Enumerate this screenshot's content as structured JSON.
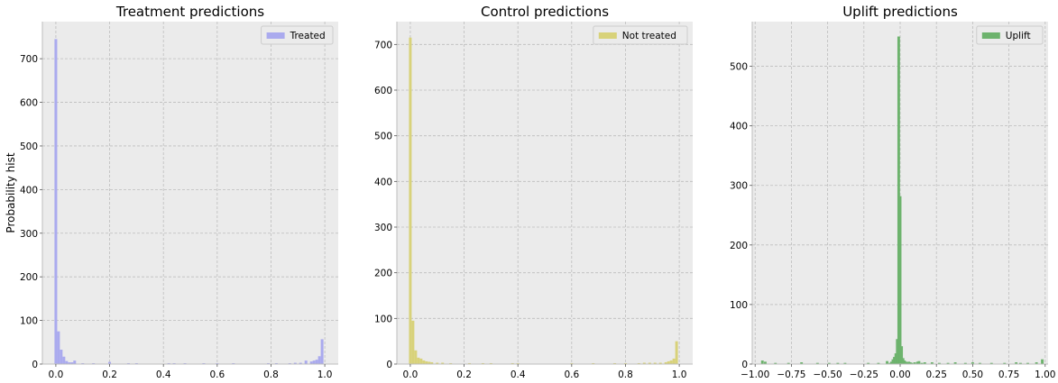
{
  "chart_data": [
    {
      "type": "bar",
      "histogram": true,
      "title": "Treatment predictions",
      "ylabel": "Probability hist",
      "xlim": [
        -0.05,
        1.05
      ],
      "ylim": [
        0,
        785
      ],
      "xticks": [
        0.0,
        0.2,
        0.4,
        0.6,
        0.8,
        1.0
      ],
      "xtick_labels": [
        "0.0",
        "0.2",
        "0.4",
        "0.6",
        "0.8",
        "1.0"
      ],
      "yticks": [
        0,
        100,
        200,
        300,
        400,
        500,
        600,
        700
      ],
      "ytick_labels": [
        "0",
        "100",
        "200",
        "300",
        "400",
        "500",
        "600",
        "700"
      ],
      "grid": true,
      "legend": "upper right",
      "series": [
        {
          "name": "Treated",
          "color": "#aaaaee",
          "bin_width": 0.01,
          "x": [
            0.0,
            0.01,
            0.02,
            0.03,
            0.04,
            0.05,
            0.06,
            0.07,
            0.1,
            0.14,
            0.2,
            0.27,
            0.3,
            0.42,
            0.44,
            0.48,
            0.55,
            0.6,
            0.66,
            0.79,
            0.82,
            0.87,
            0.89,
            0.91,
            0.93,
            0.95,
            0.96,
            0.97,
            0.98,
            0.99
          ],
          "values": [
            745,
            75,
            33,
            17,
            7,
            4,
            4,
            8,
            2,
            2,
            5,
            2,
            2,
            2,
            2,
            2,
            2,
            2,
            2,
            2,
            2,
            2,
            3,
            3,
            8,
            6,
            8,
            10,
            18,
            57
          ]
        }
      ]
    },
    {
      "type": "bar",
      "histogram": true,
      "title": "Control predictions",
      "ylabel": "",
      "xlim": [
        -0.05,
        1.05
      ],
      "ylim": [
        0,
        750
      ],
      "xticks": [
        0.0,
        0.2,
        0.4,
        0.6,
        0.8,
        1.0
      ],
      "xtick_labels": [
        "0.0",
        "0.2",
        "0.4",
        "0.6",
        "0.8",
        "1.0"
      ],
      "yticks": [
        0,
        100,
        200,
        300,
        400,
        500,
        600,
        700
      ],
      "ytick_labels": [
        "0",
        "100",
        "200",
        "300",
        "400",
        "500",
        "600",
        "700"
      ],
      "grid": true,
      "legend": "upper right",
      "series": [
        {
          "name": "Not treated",
          "color": "#d8d27a",
          "bin_width": 0.01,
          "x": [
            0.0,
            0.01,
            0.02,
            0.03,
            0.04,
            0.05,
            0.06,
            0.07,
            0.08,
            0.1,
            0.12,
            0.15,
            0.22,
            0.27,
            0.3,
            0.38,
            0.4,
            0.6,
            0.68,
            0.76,
            0.8,
            0.85,
            0.87,
            0.89,
            0.91,
            0.93,
            0.95,
            0.96,
            0.97,
            0.98,
            0.99
          ],
          "values": [
            715,
            95,
            30,
            14,
            12,
            8,
            6,
            5,
            4,
            3,
            3,
            2,
            2,
            2,
            2,
            2,
            2,
            2,
            2,
            2,
            2,
            2,
            3,
            3,
            3,
            3,
            4,
            6,
            8,
            12,
            50
          ]
        }
      ]
    },
    {
      "type": "bar",
      "histogram": true,
      "title": "Uplift predictions",
      "ylabel": "",
      "xlim": [
        -1.02,
        1.02
      ],
      "ylim": [
        0,
        575
      ],
      "xticks": [
        -1.0,
        -0.75,
        -0.5,
        -0.25,
        0.0,
        0.25,
        0.5,
        0.75,
        1.0
      ],
      "xtick_labels": [
        "−1.00",
        "−0.75",
        "−0.50",
        "−0.25",
        "0.00",
        "0.25",
        "0.50",
        "0.75",
        "1.00"
      ],
      "yticks": [
        0,
        100,
        200,
        300,
        400,
        500
      ],
      "ytick_labels": [
        "0",
        "100",
        "200",
        "300",
        "400",
        "500"
      ],
      "grid": true,
      "legend": "upper right",
      "series": [
        {
          "name": "Uplift",
          "color": "#6db36d",
          "bin_width": 0.018,
          "x": [
            -0.95,
            -0.93,
            -0.86,
            -0.77,
            -0.68,
            -0.57,
            -0.49,
            -0.43,
            -0.38,
            -0.22,
            -0.15,
            -0.09,
            -0.07,
            -0.06,
            -0.05,
            -0.04,
            -0.03,
            -0.02,
            -0.01,
            0.0,
            0.01,
            0.02,
            0.03,
            0.04,
            0.05,
            0.06,
            0.07,
            0.08,
            0.1,
            0.12,
            0.13,
            0.15,
            0.17,
            0.22,
            0.27,
            0.33,
            0.38,
            0.45,
            0.5,
            0.55,
            0.63,
            0.72,
            0.8,
            0.83,
            0.88,
            0.94,
            0.98
          ],
          "values": [
            6,
            4,
            2,
            2,
            3,
            2,
            2,
            2,
            2,
            2,
            2,
            5,
            2,
            4,
            8,
            12,
            18,
            42,
            550,
            282,
            30,
            10,
            6,
            4,
            3,
            4,
            3,
            2,
            3,
            4,
            5,
            2,
            3,
            3,
            2,
            2,
            3,
            2,
            3,
            2,
            2,
            2,
            3,
            2,
            2,
            3,
            8
          ]
        }
      ]
    }
  ]
}
